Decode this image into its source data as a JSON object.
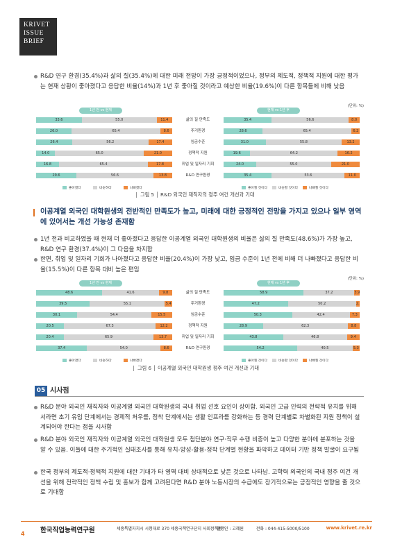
{
  "logo": {
    "line1": "KRIVET",
    "line2": "ISSUE",
    "line3": "BRIEF"
  },
  "intro_bullet": "R&D 연구 환경(35.4%)과 삶의 질(35.4%)에 대한 미래 전망이 가장 긍정적이었으나, 정부의 제도적, 정책적 지원에 대한 평가는 현재 상황이 좋아졌다고 응답한 비율(14%)과 1년 후 좋아질 것이라고 예상한 비율(19.6%)이 다른 항목들에 비해 낮음",
  "chart1": {
    "unit": "(단위: %)",
    "left_title": "1년 전 vs 현재",
    "right_title": "현재 vs 1년 후",
    "categories": [
      "삶의 질 만족도",
      "주거환경",
      "임금수준",
      "정책적 지원",
      "취업 및 일자리 기회",
      "R&D 연구환경"
    ],
    "left_rows": [
      {
        "a": 33.6,
        "b": 55.0,
        "c": 11.4
      },
      {
        "a": 26.0,
        "b": 65.4,
        "c": 8.6
      },
      {
        "a": 26.4,
        "b": 56.2,
        "c": 17.4
      },
      {
        "a": 14.0,
        "b": 65.0,
        "c": 21.0
      },
      {
        "a": 16.8,
        "b": 65.4,
        "c": 17.8
      },
      {
        "a": 29.6,
        "b": 56.6,
        "c": 13.8
      }
    ],
    "right_rows": [
      {
        "a": 35.4,
        "b": 56.6,
        "c": 8.0
      },
      {
        "a": 28.6,
        "b": 65.4,
        "c": 6.2
      },
      {
        "a": 31.0,
        "b": 55.8,
        "c": 13.2
      },
      {
        "a": 19.6,
        "b": 64.2,
        "c": 16.2
      },
      {
        "a": 24.0,
        "b": 55.0,
        "c": 21.0
      },
      {
        "a": 35.4,
        "b": 53.6,
        "c": 11.0
      }
    ],
    "left_legend": [
      "좋아졌다",
      "비슷하다",
      "나빠졌다"
    ],
    "right_legend": [
      "좋아질 것이다",
      "비슷할 것이다",
      "나빠질 것이다"
    ],
    "caption": "그림 5 │ R&D 외국인 재직자의 정주 여건 개선과 기대"
  },
  "heading2": "이공계열 외국인 대학원생의 전반적인 만족도가 높고, 미래에 대한 긍정적인 전망을 가지고 있으나 일부 영역에 있어서는 개선 가능성 존재함",
  "bullets2": [
    "1년 전과 비교하였을 때 현재 더 좋아졌다고 응답한 이공계열 외국인 대학원생의 비율은 삶의 질 만족도(48.6%)가 가장 높고, R&D 연구 환경(37.4%)이 그 다음을 차지함",
    "한편, 취업 및 일자리 기회가 나아졌다고 응답한 비율(20.4%)이 가장 낮고, 임금 수준이 1년 전에 비해 더 나빠졌다고 응답한 비율(15.5%)이 다른 항목 대비 높은 편임"
  ],
  "chart2": {
    "unit": "(단위: %)",
    "left_title": "1년 전 vs 현재",
    "right_title": "현재 vs 1년 후",
    "categories": [
      "삶의 질 만족도",
      "주거환경",
      "임금수준",
      "정책적 지원",
      "취업 및 일자리 기회",
      "R&D 연구환경"
    ],
    "left_rows": [
      {
        "a": 48.6,
        "b": 41.6,
        "c": 9.8
      },
      {
        "a": 39.5,
        "b": 55.1,
        "c": 5.4
      },
      {
        "a": 30.1,
        "b": 54.4,
        "c": 15.5
      },
      {
        "a": 20.5,
        "b": 67.3,
        "c": 12.2
      },
      {
        "a": 20.4,
        "b": 65.9,
        "c": 13.7
      },
      {
        "a": 37.4,
        "b": 54.0,
        "c": 8.6
      }
    ],
    "right_rows": [
      {
        "a": 58.9,
        "b": 37.2,
        "c": 3.9
      },
      {
        "a": 47.2,
        "b": 50.2,
        "c": 2.6
      },
      {
        "a": 50.3,
        "b": 42.4,
        "c": 7.3
      },
      {
        "a": 28.9,
        "b": 62.3,
        "c": 8.8
      },
      {
        "a": 43.8,
        "b": 46.8,
        "c": 9.4
      },
      {
        "a": 54.2,
        "b": 40.5,
        "c": 5.3
      }
    ],
    "left_legend": [
      "좋아졌다",
      "비슷하다",
      "나빠졌다"
    ],
    "right_legend": [
      "좋아질 것이다",
      "비슷할 것이다",
      "나빠질 것이다"
    ],
    "caption": "그림 6 │ 이공계열 외국인 대학원생 정주 여건 개선과 기대"
  },
  "section": {
    "number": "05",
    "title": "시사점"
  },
  "bullets3": [
    "R&D 분야 외국인 재직자와 이공계열 외국인 대학원생의 국내 취업 선호 요인이 상이함. 외국인 고급 인력의 전략적 유치를 위해서라면 초기 유입 단계에서는 경제적 처우를, 정착 단계에서는 생활 인프라를 강화하는 등 경력 단계별로 차별화된 지원 정책이 설계되어야 한다는 점을 시사함",
    "R&D 분야 외국인 재직자와 이공계열 외국인 대학원생 모두 첨단분야 연구·직무 수행 비중이 높고 다양한 분야에 분포하는 것을 알 수 있음. 이들에 대한 주기적인 실태조사를 통해 유치-양성-활용-정착 단계별 현황을 파악하고 데이터 기반 정책 발굴이 요구됨",
    "한국 정부의 제도적·정책적 지원에 대한 기대가 타 영역 대비 상대적으로 낮은 것으로 나타남. 고학력 외국인의 국내 정주 여건 개선을 위해 전략적인 정책 수립 및 홍보가 함께 고려된다면 R&D 분야 노동시장의 수급에도 장기적으로는 긍정적인 영향을 줄 것으로 기대함"
  ],
  "footer": {
    "page": "4",
    "org": "한국직업능력연구원",
    "address": "세종특별자치시 시청대로 370 세종국책연구단지 사회정책동",
    "publisher": "발행인 : 고혜원",
    "phone": "전화 : 044-415-5000/5100",
    "url": "www.krivet.re.kr"
  },
  "chart_data": [
    {
      "type": "bar",
      "title": "R&D 외국인 재직자의 정주 여건 개선과 기대 — 1년 전 vs 현재",
      "categories": [
        "삶의 질 만족도",
        "주거환경",
        "임금수준",
        "정책적 지원",
        "취업 및 일자리 기회",
        "R&D 연구환경"
      ],
      "series": [
        {
          "name": "좋아졌다",
          "values": [
            33.6,
            26.0,
            26.4,
            14.0,
            16.8,
            29.6
          ]
        },
        {
          "name": "비슷하다",
          "values": [
            55.0,
            65.4,
            56.2,
            65.0,
            65.4,
            56.6
          ]
        },
        {
          "name": "나빠졌다",
          "values": [
            11.4,
            8.6,
            17.4,
            21.0,
            17.8,
            13.8
          ]
        }
      ]
    },
    {
      "type": "bar",
      "title": "R&D 외국인 재직자의 정주 여건 개선과 기대 — 현재 vs 1년 후",
      "categories": [
        "삶의 질 만족도",
        "주거환경",
        "임금수준",
        "정책적 지원",
        "취업 및 일자리 기회",
        "R&D 연구환경"
      ],
      "series": [
        {
          "name": "좋아질 것이다",
          "values": [
            35.4,
            28.6,
            31.0,
            19.6,
            24.0,
            35.4
          ]
        },
        {
          "name": "비슷할 것이다",
          "values": [
            56.6,
            65.4,
            55.8,
            64.2,
            55.0,
            53.6
          ]
        },
        {
          "name": "나빠질 것이다",
          "values": [
            8.0,
            6.2,
            13.2,
            16.2,
            21.0,
            11.0
          ]
        }
      ]
    },
    {
      "type": "bar",
      "title": "이공계열 외국인 대학원생 정주 여건 개선과 기대 — 1년 전 vs 현재",
      "categories": [
        "삶의 질 만족도",
        "주거환경",
        "임금수준",
        "정책적 지원",
        "취업 및 일자리 기회",
        "R&D 연구환경"
      ],
      "series": [
        {
          "name": "좋아졌다",
          "values": [
            48.6,
            39.5,
            30.1,
            20.5,
            20.4,
            37.4
          ]
        },
        {
          "name": "비슷하다",
          "values": [
            41.6,
            55.1,
            54.4,
            67.3,
            65.9,
            54.0
          ]
        },
        {
          "name": "나빠졌다",
          "values": [
            9.8,
            5.4,
            15.5,
            12.2,
            13.7,
            8.6
          ]
        }
      ]
    },
    {
      "type": "bar",
      "title": "이공계열 외국인 대학원생 정주 여건 개선과 기대 — 현재 vs 1년 후",
      "categories": [
        "삶의 질 만족도",
        "주거환경",
        "임금수준",
        "정책적 지원",
        "취업 및 일자리 기회",
        "R&D 연구환경"
      ],
      "series": [
        {
          "name": "좋아질 것이다",
          "values": [
            58.9,
            47.2,
            50.3,
            28.9,
            43.8,
            54.2
          ]
        },
        {
          "name": "비슷할 것이다",
          "values": [
            37.2,
            50.2,
            42.4,
            62.3,
            46.8,
            40.5
          ]
        },
        {
          "name": "나빠질 것이다",
          "values": [
            3.9,
            2.6,
            7.3,
            8.8,
            9.4,
            5.3
          ]
        }
      ]
    }
  ]
}
